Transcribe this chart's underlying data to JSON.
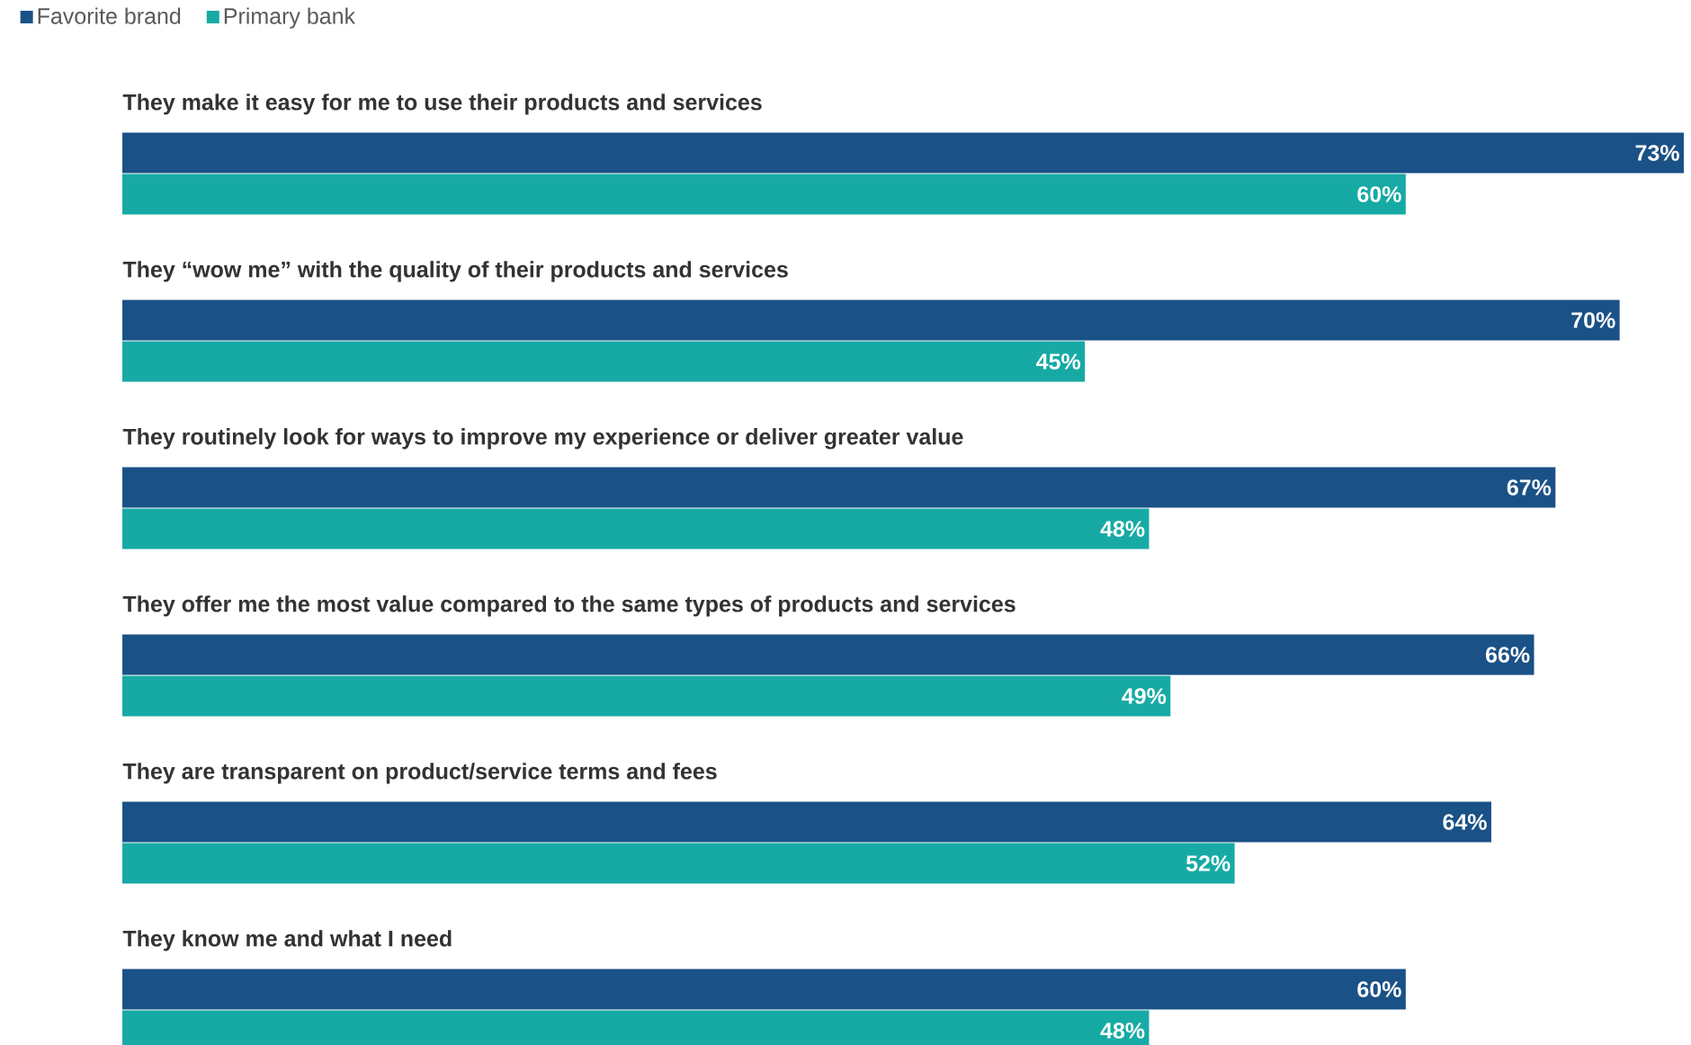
{
  "chart_data": {
    "type": "bar",
    "orientation": "horizontal",
    "legend": "top left",
    "categories": [
      "They make it easy for me to use their products and services",
      "They “wow me” with the quality of their products and services",
      "They routinely look for ways to improve my experience or deliver greater value",
      "They offer me the most value compared to the same types of products and services",
      "They are transparent on product/service terms and fees",
      "They know me and what I need"
    ],
    "series": [
      {
        "name": "Favorite brand",
        "color": "#1a5186",
        "values": [
          73,
          70,
          67,
          66,
          64,
          60
        ],
        "value_labels": [
          "73%",
          "70%",
          "67%",
          "66%",
          "64%",
          "60%"
        ]
      },
      {
        "name": "Primary bank",
        "color": "#17aaa5",
        "values": [
          60,
          45,
          48,
          49,
          52,
          48
        ],
        "value_labels": [
          "60%",
          "45%",
          "48%",
          "49%",
          "52%",
          "48%"
        ]
      }
    ]
  }
}
